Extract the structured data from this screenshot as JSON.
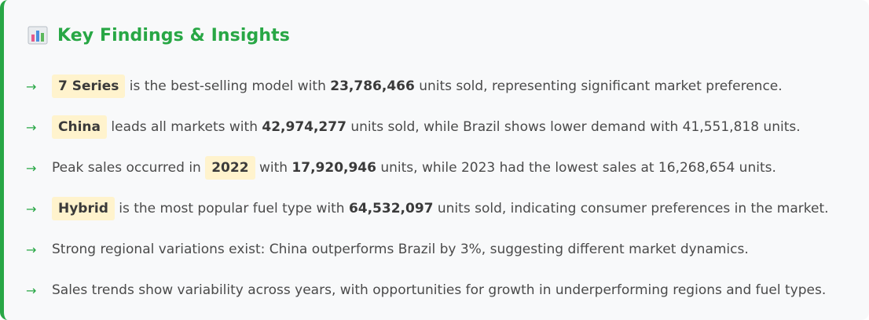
{
  "header": {
    "icon": "bar-chart-icon",
    "title": "Key Findings & Insights"
  },
  "colors": {
    "accent": "#28a745",
    "highlight_bg": "#fff3cd",
    "card_bg": "#f8f9fa",
    "text": "#4a4a4a"
  },
  "findings": [
    {
      "arrow": "→",
      "tag": "7 Series",
      "text1": " is the best-selling model with ",
      "bold": "23,786,466",
      "text2": " units sold, representing significant market preference."
    },
    {
      "arrow": "→",
      "tag": "China",
      "text1": " leads all markets with ",
      "bold": "42,974,277",
      "text2": " units sold, while Brazil shows lower demand with 41,551,818 units."
    },
    {
      "arrow": "→",
      "pre": "Peak sales occurred in ",
      "tag": "2022",
      "text1": " with ",
      "bold": "17,920,946",
      "text2": " units, while 2023 had the lowest sales at 16,268,654 units."
    },
    {
      "arrow": "→",
      "tag": "Hybrid",
      "text1": " is the most popular fuel type with ",
      "bold": "64,532,097",
      "text2": " units sold, indicating consumer preferences in the market."
    },
    {
      "arrow": "→",
      "text": "Strong regional variations exist: China outperforms Brazil by 3%, suggesting different market dynamics."
    },
    {
      "arrow": "→",
      "text": "Sales trends show variability across years, with opportunities for growth in underperforming regions and fuel types."
    }
  ]
}
